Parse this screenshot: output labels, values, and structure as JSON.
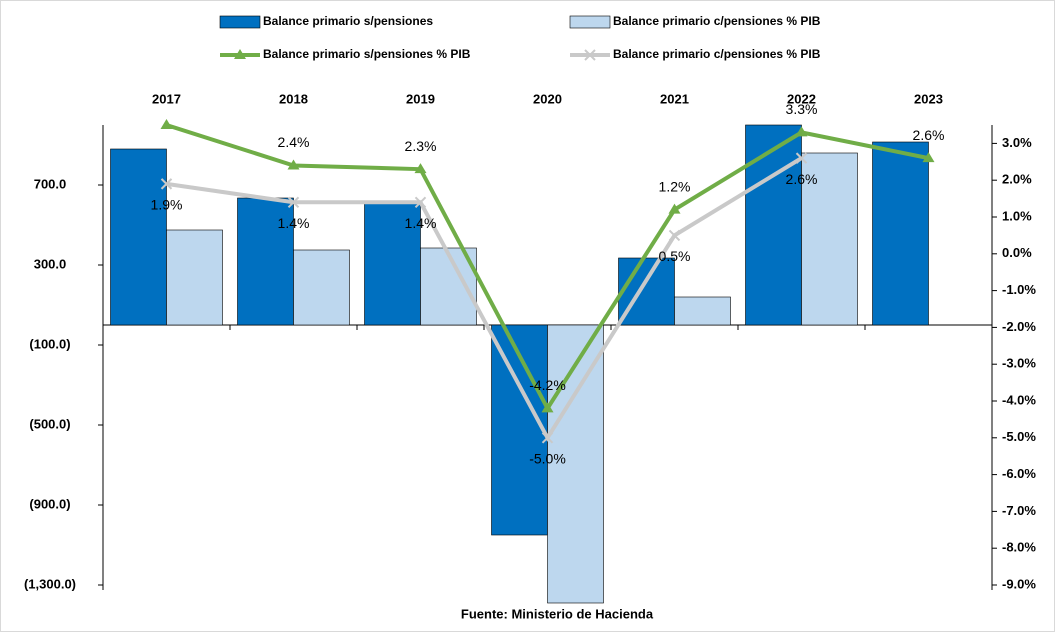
{
  "chart_data": {
    "type": "bar-line",
    "categories": [
      "2017",
      "2018",
      "2019",
      "2020",
      "2021",
      "2022",
      "2023"
    ],
    "series": [
      {
        "name": "Balance primario s/pensiones",
        "color": "#0070c0",
        "kind": "bar",
        "values": [
          880,
          635,
          615,
          -1050,
          335,
          1000,
          915
        ]
      },
      {
        "name": "Balance primario  c/pensiones % PIB",
        "color": "#bdd7ee",
        "kind": "bar",
        "values": [
          475,
          375,
          385,
          -1390,
          140,
          860,
          null
        ]
      },
      {
        "name": "Balance primario  s/pensiones % PIB",
        "color": "#70ad47",
        "kind": "line",
        "marker": "triangle",
        "axis": "y2",
        "values": [
          3.5,
          2.4,
          2.3,
          -4.2,
          1.2,
          3.3,
          2.6
        ],
        "value_labels": [
          null,
          "2.4%",
          "2.3%",
          "-4.2%",
          "1.2%",
          "3.3%",
          "2.6%"
        ]
      },
      {
        "name": "Balance primario  c/pensiones % PIB",
        "color": "#c9c9c9",
        "kind": "line",
        "marker": "x",
        "axis": "y2",
        "values": [
          1.9,
          1.4,
          1.4,
          -5.0,
          0.5,
          2.6,
          null
        ],
        "value_labels": [
          "1.9%",
          "1.4%",
          "1.4%",
          "-5.0%",
          "0.5%",
          "2.6%",
          null
        ]
      }
    ],
    "ylim": [
      -1300,
      1000
    ],
    "yticks": [
      {
        "value": 700,
        "label": "700.0"
      },
      {
        "value": 300,
        "label": "300.0"
      },
      {
        "value": -100,
        "label": "(100.0)"
      },
      {
        "value": -500,
        "label": "(500.0)"
      },
      {
        "value": -900,
        "label": "(900.0)"
      },
      {
        "value": -1300,
        "label": "(1,300.0)"
      }
    ],
    "y2lim": [
      -9,
      3.5
    ],
    "y2ticks": [
      {
        "value": 3,
        "label": "3.0%"
      },
      {
        "value": 2,
        "label": "2.0%"
      },
      {
        "value": 1,
        "label": "1.0%"
      },
      {
        "value": 0,
        "label": "0.0%"
      },
      {
        "value": -1,
        "label": "-1.0%"
      },
      {
        "value": -2,
        "label": "-2.0%"
      },
      {
        "value": -3,
        "label": "-3.0%"
      },
      {
        "value": -4,
        "label": "-4.0%"
      },
      {
        "value": -5,
        "label": "-5.0%"
      },
      {
        "value": -6,
        "label": "-6.0%"
      },
      {
        "value": -7,
        "label": "-7.0%"
      },
      {
        "value": -8,
        "label": "-8.0%"
      },
      {
        "value": -9,
        "label": "-9.0%"
      }
    ],
    "source": "Fuente: Ministerio de Hacienda"
  }
}
